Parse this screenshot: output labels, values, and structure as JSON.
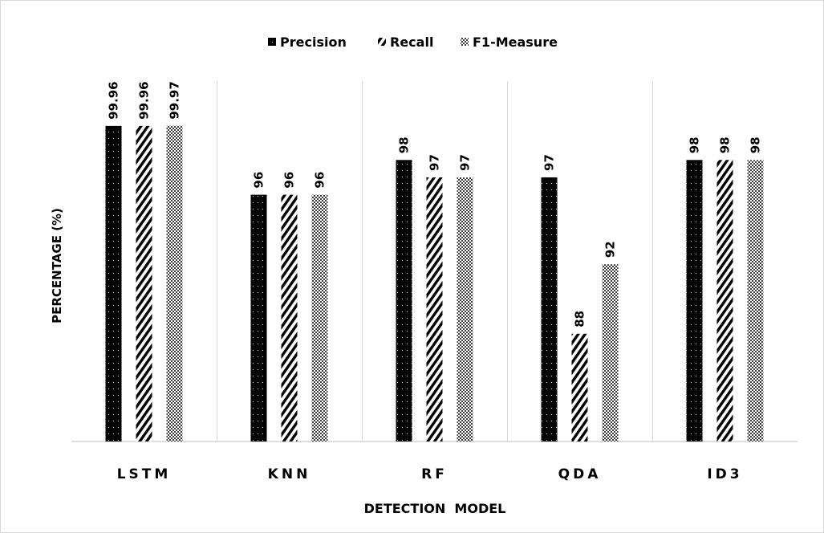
{
  "chart_data": {
    "type": "bar",
    "title": "",
    "xlabel": "DETECTION  MODEL",
    "ylabel": "PERCENTAGE (%)",
    "categories": [
      "LSTM",
      "KNN",
      "RF",
      "QDA",
      "ID3"
    ],
    "series": [
      {
        "name": "Precision",
        "values": [
          99.96,
          96,
          98,
          97,
          98
        ],
        "labels": [
          "99.96",
          "96",
          "98",
          "97",
          "98"
        ]
      },
      {
        "name": "Recall",
        "values": [
          99.96,
          96,
          97,
          88,
          98
        ],
        "labels": [
          "99.96",
          "96",
          "97",
          "88",
          "98"
        ]
      },
      {
        "name": "F1-Measure",
        "values": [
          99.97,
          96,
          97,
          92,
          98
        ],
        "labels": [
          "99.97",
          "96",
          "97",
          "92",
          "98"
        ]
      }
    ],
    "ylim": [
      81.8,
      100
    ],
    "legend_position": "top",
    "grid": "vertical category separators",
    "patterns": [
      "dotted-black",
      "diagonal-hatch",
      "crosshatch"
    ]
  }
}
